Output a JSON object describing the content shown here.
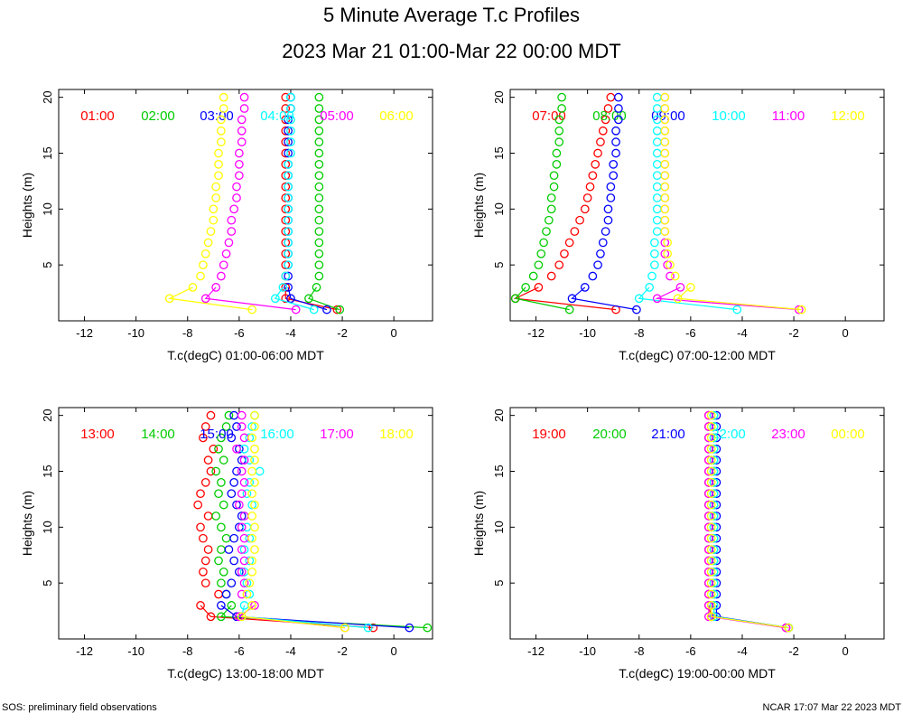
{
  "title": "5 Minute Average T.c Profiles",
  "subtitle": "2023 Mar 21 01:00-Mar 22 00:00 MDT",
  "footer_left": "SOS: preliminary field observations",
  "footer_right": "NCAR 17:07 Mar 22 2023 MDT",
  "heights": [
    1,
    2,
    3,
    4,
    5,
    6,
    7,
    8,
    9,
    10,
    11,
    12,
    13,
    14,
    15,
    16,
    17,
    18,
    19,
    20
  ],
  "series_colors": [
    "#ff0000",
    "#00cc00",
    "#0000ff",
    "#00ffff",
    "#ff00ff",
    "#ffff00"
  ],
  "chart_data": [
    {
      "type": "scatter",
      "xlabel": "T.c(degC) 01:00-06:00 MDT",
      "ylabel": "Heights (m)",
      "xlim": [
        -13,
        1.5
      ],
      "ylim": [
        0,
        20.7
      ],
      "xticks": [
        -12,
        -10,
        -8,
        -6,
        -4,
        -2,
        0
      ],
      "yticks": [
        5,
        10,
        15,
        20
      ],
      "series": [
        {
          "name": "01:00",
          "values": [
            -2.2,
            -4.2,
            -4.2,
            -4.2,
            -4.2,
            -4.2,
            -4.2,
            -4.2,
            -4.2,
            -4.2,
            -4.2,
            -4.2,
            -4.2,
            -4.2,
            -4.2,
            -4.2,
            -4.2,
            -4.2,
            -4.2,
            -4.2
          ]
        },
        {
          "name": "02:00",
          "values": [
            -2.1,
            -3.3,
            -3.0,
            -2.9,
            -2.9,
            -2.9,
            -2.9,
            -2.9,
            -2.9,
            -2.9,
            -2.9,
            -2.9,
            -2.9,
            -2.9,
            -2.9,
            -2.9,
            -2.9,
            -2.9,
            -2.9,
            -2.9
          ]
        },
        {
          "name": "03:00",
          "values": [
            -2.6,
            -4.0,
            -4.1,
            -4.1,
            -4.1,
            -4.1,
            -4.1,
            -4.1,
            -4.1,
            -4.1,
            -4.1,
            -4.1,
            -4.1,
            -4.1,
            -4.1,
            -4.1,
            -4.1,
            -4.1,
            -4.0,
            -4.0
          ]
        },
        {
          "name": "04:00",
          "values": [
            -3.1,
            -4.6,
            -4.3,
            -4.2,
            -4.1,
            -4.1,
            -4.1,
            -4.1,
            -4.1,
            -4.1,
            -4.1,
            -4.1,
            -4.1,
            -4.1,
            -4.0,
            -4.0,
            -4.0,
            -4.0,
            -4.0,
            -4.0
          ]
        },
        {
          "name": "05:00",
          "values": [
            -3.8,
            -7.3,
            -6.9,
            -6.7,
            -6.6,
            -6.5,
            -6.4,
            -6.3,
            -6.3,
            -6.2,
            -6.1,
            -6.1,
            -6.0,
            -6.0,
            -6.0,
            -5.9,
            -5.9,
            -5.9,
            -5.8,
            -5.8
          ]
        },
        {
          "name": "06:00",
          "values": [
            -5.5,
            -8.7,
            -7.8,
            -7.5,
            -7.4,
            -7.3,
            -7.2,
            -7.1,
            -7.0,
            -7.0,
            -6.9,
            -6.9,
            -6.8,
            -6.8,
            -6.8,
            -6.7,
            -6.7,
            -6.7,
            -6.6,
            -6.6
          ]
        }
      ]
    },
    {
      "type": "scatter",
      "xlabel": "T.c(degC) 07:00-12:00 MDT",
      "ylabel": "Heights (m)",
      "xlim": [
        -13,
        1.5
      ],
      "ylim": [
        0,
        20.7
      ],
      "xticks": [
        -12,
        -10,
        -8,
        -6,
        -4,
        -2,
        0
      ],
      "yticks": [
        5,
        10,
        15,
        20
      ],
      "series": [
        {
          "name": "07:00",
          "values": [
            -8.9,
            -12.8,
            -11.9,
            -11.4,
            -11.1,
            -10.9,
            -10.7,
            -10.5,
            -10.3,
            -10.1,
            -10.0,
            -9.9,
            -9.8,
            -9.7,
            -9.6,
            -9.5,
            -9.4,
            -9.3,
            -9.2,
            -9.1
          ]
        },
        {
          "name": "08:00",
          "values": [
            -10.7,
            -12.8,
            -12.4,
            -12.1,
            -11.9,
            -11.8,
            -11.7,
            -11.6,
            -11.5,
            -11.4,
            -11.4,
            -11.3,
            -11.3,
            -11.2,
            -11.2,
            -11.1,
            -11.1,
            -11.1,
            -11.0,
            -11.0
          ]
        },
        {
          "name": "09:00",
          "values": [
            -8.1,
            -10.6,
            -10.1,
            -9.8,
            -9.6,
            -9.5,
            -9.4,
            -9.3,
            -9.2,
            -9.2,
            -9.1,
            -9.1,
            -9.0,
            -9.0,
            -8.9,
            -8.9,
            -8.9,
            -8.8,
            -8.8,
            -8.8
          ]
        },
        {
          "name": "10:00",
          "values": [
            -4.2,
            -8.0,
            -7.6,
            -7.5,
            -7.4,
            -7.4,
            -7.4,
            -7.3,
            -7.3,
            -7.3,
            -7.3,
            -7.3,
            -7.3,
            -7.3,
            -7.3,
            -7.3,
            -7.3,
            -7.3,
            -7.3,
            -7.3
          ]
        },
        {
          "name": "11:00",
          "values": [
            -1.8,
            -7.3,
            -6.4,
            -6.8,
            -6.9,
            -7.0,
            -7.0,
            -7.0,
            -7.0,
            -7.0,
            -7.0,
            -7.0,
            -7.0,
            -7.0,
            -7.0,
            -7.0,
            -7.0,
            -7.0,
            -7.0,
            -7.0
          ]
        },
        {
          "name": "12:00",
          "values": [
            -1.7,
            -6.5,
            -6.0,
            -6.6,
            -6.8,
            -6.9,
            -6.9,
            -7.0,
            -7.0,
            -7.0,
            -7.0,
            -7.0,
            -7.0,
            -7.0,
            -7.0,
            -7.0,
            -7.0,
            -7.0,
            -7.0,
            -7.0
          ]
        }
      ]
    },
    {
      "type": "scatter",
      "xlabel": "T.c(degC) 13:00-18:00 MDT",
      "ylabel": "Heights (m)",
      "xlim": [
        -13,
        1.5
      ],
      "ylim": [
        0,
        20.7
      ],
      "xticks": [
        -12,
        -10,
        -8,
        -6,
        -4,
        -2,
        0
      ],
      "yticks": [
        5,
        10,
        15,
        20
      ],
      "series": [
        {
          "name": "13:00",
          "values": [
            -0.8,
            -7.1,
            -7.5,
            -6.8,
            -7.3,
            -7.4,
            -7.3,
            -7.2,
            -7.4,
            -7.5,
            -7.2,
            -7.6,
            -7.5,
            -7.3,
            -7.1,
            -7.2,
            -7.0,
            -7.4,
            -7.3,
            -7.1
          ]
        },
        {
          "name": "14:00",
          "values": [
            1.3,
            -6.7,
            -6.3,
            -6.5,
            -6.7,
            -6.6,
            -6.8,
            -6.7,
            -6.5,
            -6.7,
            -6.9,
            -6.6,
            -6.8,
            -6.7,
            -6.9,
            -6.6,
            -6.8,
            -6.7,
            -6.5,
            -6.4
          ]
        },
        {
          "name": "15:00",
          "values": [
            0.6,
            -6.1,
            -6.7,
            -6.5,
            -6.3,
            -6.0,
            -6.2,
            -6.4,
            -6.2,
            -6.0,
            -5.9,
            -6.1,
            -6.3,
            -6.2,
            -6.1,
            -5.9,
            -6.0,
            -6.3,
            -6.1,
            -6.2
          ]
        },
        {
          "name": "16:00",
          "values": [
            -1.0,
            -5.9,
            -5.8,
            -5.6,
            -5.7,
            -5.8,
            -5.6,
            -5.8,
            -5.6,
            -5.7,
            -5.8,
            -5.5,
            -5.7,
            -5.6,
            -5.2,
            -5.6,
            -5.8,
            -5.6,
            -5.5,
            -5.4
          ]
        },
        {
          "name": "17:00",
          "values": [
            -1.9,
            -6.0,
            -5.4,
            -5.9,
            -5.8,
            -5.9,
            -5.8,
            -5.9,
            -5.8,
            -5.9,
            -5.8,
            -6.0,
            -5.9,
            -5.8,
            -5.9,
            -5.8,
            -6.1,
            -5.8,
            -5.9,
            -5.9
          ]
        },
        {
          "name": "18:00",
          "values": [
            -1.9,
            -5.9,
            -5.5,
            -5.7,
            -5.6,
            -5.5,
            -5.5,
            -5.4,
            -5.5,
            -5.4,
            -5.5,
            -5.4,
            -5.5,
            -5.4,
            -5.5,
            -5.4,
            -5.4,
            -5.5,
            -5.4,
            -5.4
          ]
        }
      ]
    },
    {
      "type": "scatter",
      "xlabel": "T.c(degC) 19:00-00:00 MDT",
      "ylabel": "Heights (m)",
      "xlim": [
        -13,
        1.5
      ],
      "ylim": [
        0,
        20.7
      ],
      "xticks": [
        -12,
        -10,
        -8,
        -6,
        -4,
        -2,
        0
      ],
      "yticks": [
        5,
        10,
        15,
        20
      ],
      "series": [
        {
          "name": "19:00",
          "values": [
            -2.3,
            -5.2,
            -5.3,
            -5.3,
            -5.3,
            -5.3,
            -5.3,
            -5.3,
            -5.3,
            -5.3,
            -5.3,
            -5.3,
            -5.3,
            -5.3,
            -5.3,
            -5.3,
            -5.3,
            -5.3,
            -5.3,
            -5.3
          ]
        },
        {
          "name": "20:00",
          "values": [
            -2.2,
            -5.1,
            -5.1,
            -5.1,
            -5.1,
            -5.1,
            -5.1,
            -5.1,
            -5.1,
            -5.1,
            -5.1,
            -5.1,
            -5.1,
            -5.1,
            -5.1,
            -5.1,
            -5.1,
            -5.1,
            -5.1,
            -5.1
          ]
        },
        {
          "name": "21:00",
          "values": [
            -2.2,
            -5.0,
            -5.0,
            -5.0,
            -5.0,
            -5.0,
            -5.0,
            -5.0,
            -5.0,
            -5.0,
            -5.0,
            -5.0,
            -5.0,
            -5.0,
            -5.0,
            -5.0,
            -5.0,
            -5.0,
            -5.0,
            -5.0
          ]
        },
        {
          "name": "22:00",
          "values": [
            -2.2,
            -5.1,
            -5.1,
            -5.1,
            -5.1,
            -5.1,
            -5.1,
            -5.1,
            -5.1,
            -5.1,
            -5.1,
            -5.1,
            -5.1,
            -5.1,
            -5.1,
            -5.1,
            -5.1,
            -5.1,
            -5.1,
            -5.1
          ]
        },
        {
          "name": "23:00",
          "values": [
            -2.3,
            -5.3,
            -5.3,
            -5.3,
            -5.3,
            -5.3,
            -5.3,
            -5.3,
            -5.3,
            -5.3,
            -5.3,
            -5.3,
            -5.3,
            -5.3,
            -5.3,
            -5.3,
            -5.3,
            -5.3,
            -5.3,
            -5.3
          ]
        },
        {
          "name": "00:00",
          "values": [
            -2.2,
            -5.2,
            -5.2,
            -5.2,
            -5.2,
            -5.2,
            -5.2,
            -5.2,
            -5.2,
            -5.2,
            -5.2,
            -5.2,
            -5.2,
            -5.2,
            -5.2,
            -5.2,
            -5.2,
            -5.2,
            -5.2,
            -5.2
          ]
        }
      ]
    }
  ]
}
